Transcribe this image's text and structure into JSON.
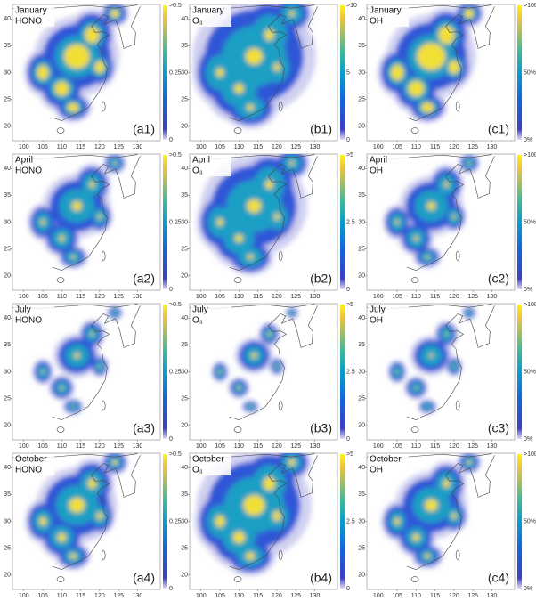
{
  "panels": [
    {
      "month": "January",
      "species": "HONO",
      "label": "(a1)",
      "colorbar": [
        ">0.5",
        "0.25",
        "0"
      ]
    },
    {
      "month": "January",
      "species": "O₃",
      "label": "(b1)",
      "colorbar": [
        ">10",
        "5",
        "0"
      ]
    },
    {
      "month": "January",
      "species": "OH",
      "label": "(c1)",
      "colorbar": [
        ">100%",
        "50%",
        "0%"
      ]
    },
    {
      "month": "April",
      "species": "HONO",
      "label": "(a2)",
      "colorbar": [
        ">0.5",
        "0.25",
        "0"
      ]
    },
    {
      "month": "April",
      "species": "O₃",
      "label": "(b2)",
      "colorbar": [
        ">5",
        "2.5",
        "0"
      ]
    },
    {
      "month": "April",
      "species": "OH",
      "label": "(c2)",
      "colorbar": [
        ">100%",
        "50%",
        "0%"
      ]
    },
    {
      "month": "July",
      "species": "HONO",
      "label": "(a3)",
      "colorbar": [
        ">0.5",
        "0.25",
        "0"
      ]
    },
    {
      "month": "July",
      "species": "O₃",
      "label": "(b3)",
      "colorbar": [
        ">5",
        "2.5",
        "0"
      ]
    },
    {
      "month": "July",
      "species": "OH",
      "label": "(c3)",
      "colorbar": [
        ">100%",
        "50%",
        "0%"
      ]
    },
    {
      "month": "October",
      "species": "HONO",
      "label": "(a4)",
      "colorbar": [
        ">0.5",
        "0.25",
        "0"
      ]
    },
    {
      "month": "October",
      "species": "O₃",
      "label": "(b4)",
      "colorbar": [
        ">5",
        "2.5",
        "0"
      ]
    },
    {
      "month": "October",
      "species": "OH",
      "label": "(c4)",
      "colorbar": [
        ">100%",
        "50%",
        "0%"
      ]
    }
  ],
  "xticks": [
    100,
    105,
    110,
    115,
    120,
    125,
    130
  ],
  "yticks": [
    20,
    25,
    30,
    35,
    40
  ]
}
